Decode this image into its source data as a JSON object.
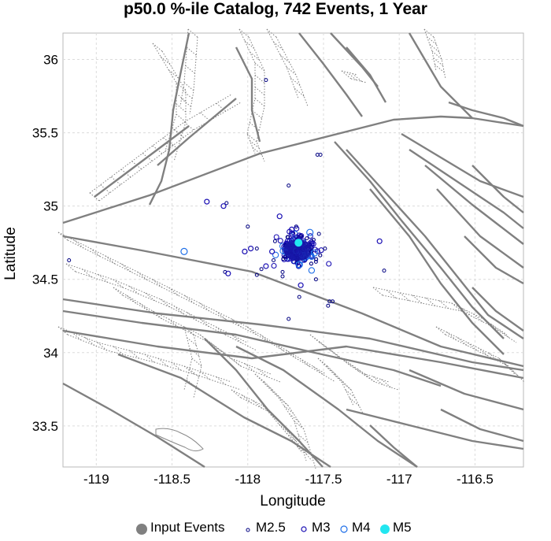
{
  "chart_data": {
    "type": "scatter",
    "title": "p50.0 %-ile Catalog, 742 Events, 1 Year",
    "xlabel": "Longitude",
    "ylabel": "Latitude",
    "xlim": [
      -119.22,
      -116.18
    ],
    "ylim": [
      33.22,
      36.18
    ],
    "xticks": [
      -119,
      -118.5,
      -118,
      -117.5,
      -117,
      -116.5
    ],
    "xtick_labels": [
      "-119",
      "-118.5",
      "-118",
      "-117.5",
      "-117",
      "-116.5"
    ],
    "yticks": [
      33.5,
      34,
      34.5,
      35,
      35.5,
      36
    ],
    "ytick_labels": [
      "33.5",
      "34",
      "34.5",
      "35",
      "35.5",
      "36"
    ],
    "grid": true,
    "legend": {
      "placement": "bottom",
      "entries": [
        {
          "name": "Input Events",
          "color": "#808080",
          "marker": "filled-circle"
        },
        {
          "name": "M2.5",
          "color": "#000080",
          "marker": "open-circle-small"
        },
        {
          "name": "M3",
          "color": "#1a0fb3",
          "marker": "open-circle"
        },
        {
          "name": "M4",
          "color": "#1f6fe8",
          "marker": "open-circle-large"
        },
        {
          "name": "M5",
          "color": "#22e6f0",
          "marker": "filled-circle"
        }
      ]
    },
    "colors": {
      "fault": "#808080",
      "dense_cluster": "#1818a8",
      "m25": "#000080",
      "m3": "#1a0fb3",
      "m4": "#1f6fe8",
      "m5": "#22e6f0"
    },
    "series": [
      {
        "name": "M2.5",
        "points": [
          [
            -117.88,
            35.86
          ],
          [
            -117.54,
            35.35
          ],
          [
            -117.52,
            35.35
          ],
          [
            -117.73,
            35.14
          ],
          [
            -118.14,
            35.02
          ],
          [
            -118.0,
            34.86
          ],
          [
            -117.53,
            34.81
          ],
          [
            -117.94,
            34.71
          ],
          [
            -117.91,
            34.57
          ],
          [
            -117.77,
            34.55
          ],
          [
            -117.55,
            34.5
          ],
          [
            -117.1,
            34.56
          ],
          [
            -117.94,
            34.53
          ],
          [
            -117.66,
            34.38
          ],
          [
            -117.46,
            34.35
          ],
          [
            -117.47,
            34.32
          ],
          [
            -117.44,
            34.35
          ],
          [
            -117.73,
            34.23
          ],
          [
            -119.18,
            34.63
          ],
          [
            -118.15,
            34.55
          ],
          [
            -117.82,
            34.76
          ],
          [
            -117.49,
            34.71
          ],
          [
            -117.55,
            34.62
          ],
          [
            -117.83,
            34.63
          ],
          [
            -117.68,
            34.86
          ],
          [
            -117.77,
            34.52
          ],
          [
            -117.58,
            34.69
          ],
          [
            -117.61,
            34.78
          ]
        ]
      },
      {
        "name": "M3",
        "points": [
          [
            -118.27,
            35.03
          ],
          [
            -118.16,
            35.0
          ],
          [
            -117.98,
            34.71
          ],
          [
            -117.84,
            34.69
          ],
          [
            -117.13,
            34.76
          ],
          [
            -118.13,
            34.54
          ],
          [
            -117.88,
            34.59
          ],
          [
            -117.65,
            34.46
          ],
          [
            -117.79,
            34.93
          ],
          [
            -117.71,
            34.84
          ],
          [
            -118.02,
            34.69
          ]
        ]
      },
      {
        "name": "M4",
        "points": [
          [
            -118.42,
            34.69
          ],
          [
            -117.66,
            34.6
          ],
          [
            -117.59,
            34.82
          ],
          [
            -117.56,
            34.68
          ]
        ]
      },
      {
        "name": "M5",
        "points": [
          [
            -117.665,
            34.75
          ]
        ]
      }
    ],
    "cluster": {
      "name": "Input Events",
      "center": [
        -117.68,
        34.705
      ],
      "spread": [
        0.065,
        0.055
      ]
    }
  }
}
